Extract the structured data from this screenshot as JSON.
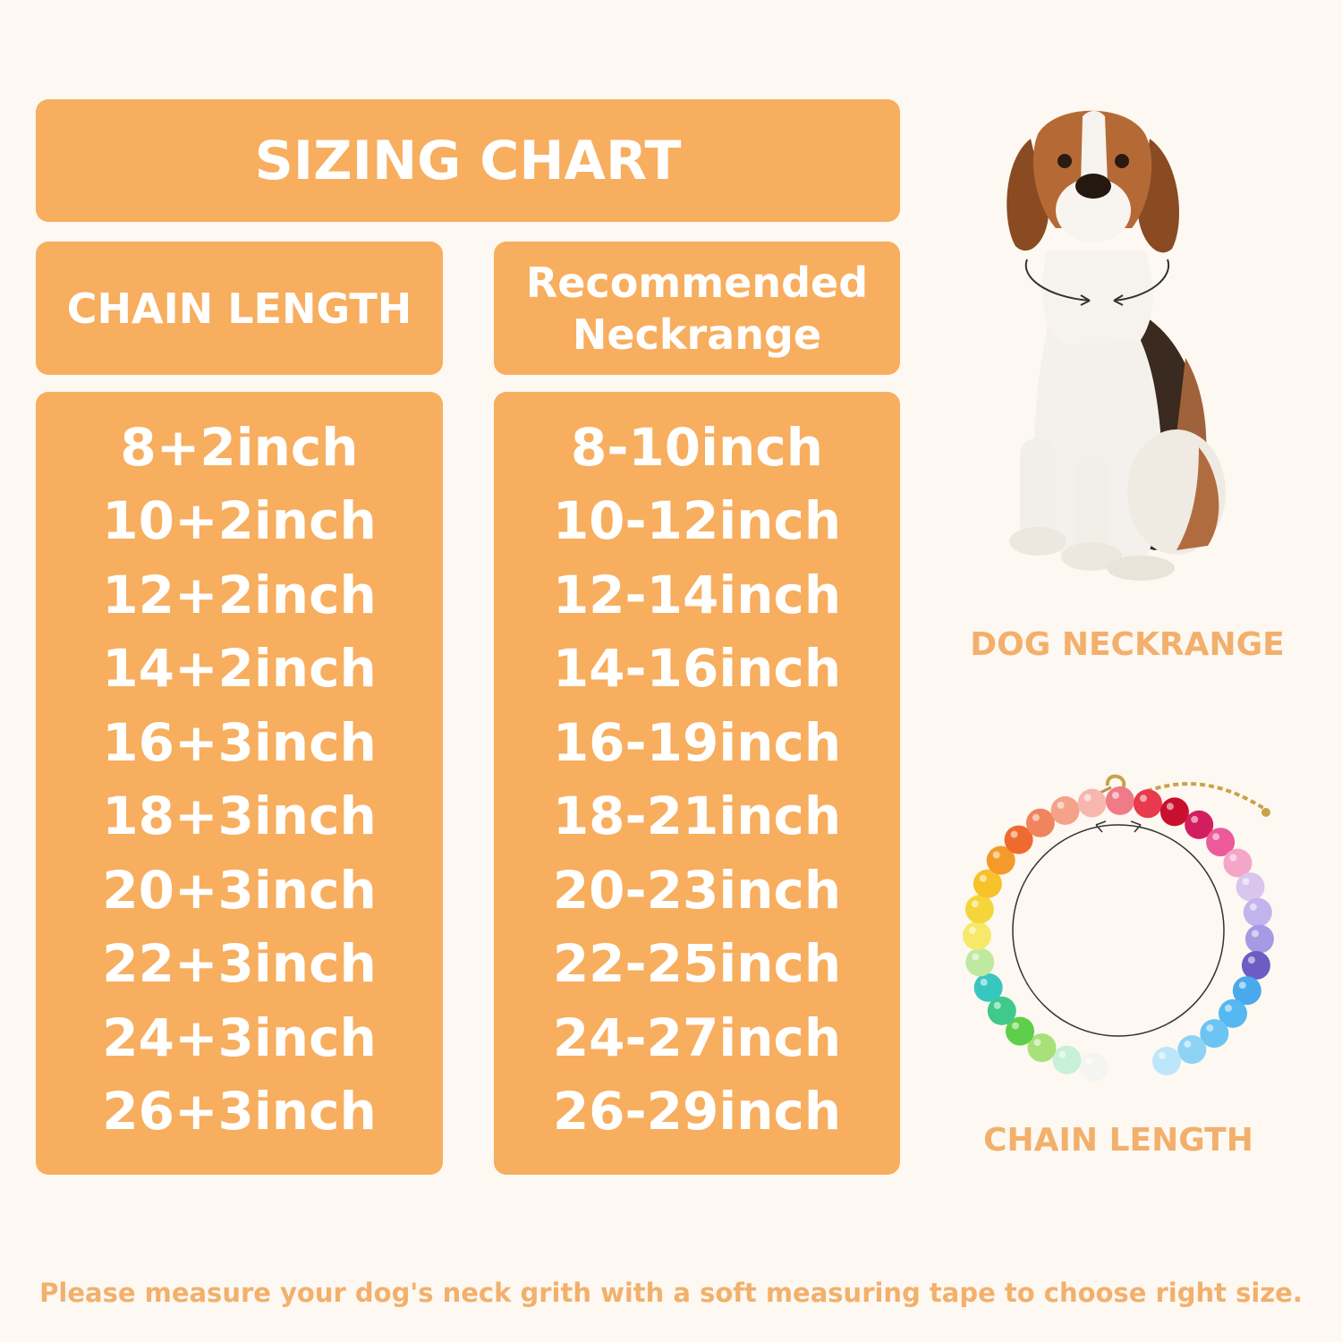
{
  "title": "SIZING CHART",
  "headers": {
    "chain_length": "CHAIN LENGTH",
    "neckrange_line1": "Recommended",
    "neckrange_line2": "Neckrange"
  },
  "rows": [
    {
      "chain": "8+2inch",
      "neck": "8-10inch"
    },
    {
      "chain": "10+2inch",
      "neck": "10-12inch"
    },
    {
      "chain": "12+2inch",
      "neck": "12-14inch"
    },
    {
      "chain": "14+2inch",
      "neck": "14-16inch"
    },
    {
      "chain": "16+3inch",
      "neck": "16-19inch"
    },
    {
      "chain": "18+3inch",
      "neck": "18-21inch"
    },
    {
      "chain": "20+3inch",
      "neck": "20-23inch"
    },
    {
      "chain": "22+3inch",
      "neck": "22-25inch"
    },
    {
      "chain": "24+3inch",
      "neck": "24-27inch"
    },
    {
      "chain": "26+3inch",
      "neck": "26-29inch"
    }
  ],
  "side_labels": {
    "dog": "DOG NECKRANGE",
    "chain": "CHAIN LENGTH"
  },
  "footnote": "Please measure your dog's neck grith with a soft measuring tape to choose right size.",
  "colors": {
    "background": "#fdf8f1",
    "panel": "#f7ae5f",
    "accent_text": "#f2b06c",
    "panel_text": "#ffffff"
  },
  "bead_colors": [
    "#f4f4f0",
    "#c8efd8",
    "#a8e07a",
    "#5fce4a",
    "#3fc98a",
    "#38c6c0",
    "#bfe9a0",
    "#f6e96a",
    "#f5d53a",
    "#f7c22a",
    "#f49a2a",
    "#ef6a2e",
    "#f0845e",
    "#f4a38a",
    "#f6b8ae",
    "#f07a86",
    "#e83a4c",
    "#c8102e",
    "#d41d5f",
    "#ec5a9a",
    "#f4a6c8",
    "#d9c6ee",
    "#c2b4ec",
    "#a59ae4",
    "#6c5cc4",
    "#4aa8ec",
    "#56b8f0",
    "#6cc4f2",
    "#8ed2f6",
    "#bde6fa"
  ]
}
